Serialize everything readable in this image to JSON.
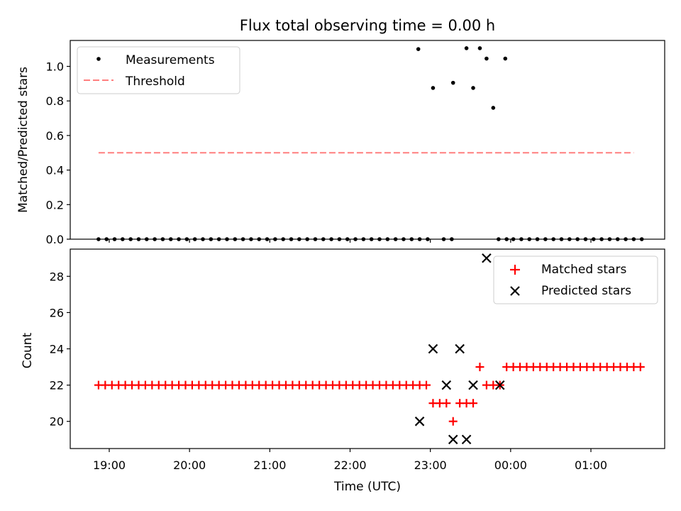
{
  "chart_data": [
    {
      "type": "scatter",
      "title": "Flux total observing time = 0.00 h",
      "xlabel": "",
      "ylabel": "Matched/Predicted stars",
      "ylim": [
        0,
        1.15
      ],
      "yticks": [
        "0.0",
        "0.2",
        "0.4",
        "0.6",
        "0.8",
        "1.0"
      ],
      "legend": {
        "position": "top-left",
        "entries": [
          "Measurements",
          "Threshold"
        ]
      },
      "series": [
        {
          "name": "Measurements",
          "color": "#000000",
          "marker": "dot",
          "points": [
            [
              "18:52",
              0
            ],
            [
              "18:58",
              0
            ],
            [
              "19:04",
              0
            ],
            [
              "19:10",
              0
            ],
            [
              "19:16",
              0
            ],
            [
              "19:22",
              0
            ],
            [
              "19:28",
              0
            ],
            [
              "19:34",
              0
            ],
            [
              "19:40",
              0
            ],
            [
              "19:46",
              0
            ],
            [
              "19:52",
              0
            ],
            [
              "19:58",
              0
            ],
            [
              "20:04",
              0
            ],
            [
              "20:10",
              0
            ],
            [
              "20:16",
              0
            ],
            [
              "20:22",
              0
            ],
            [
              "20:28",
              0
            ],
            [
              "20:34",
              0
            ],
            [
              "20:40",
              0
            ],
            [
              "20:46",
              0
            ],
            [
              "20:52",
              0
            ],
            [
              "20:58",
              0
            ],
            [
              "21:04",
              0
            ],
            [
              "21:10",
              0
            ],
            [
              "21:16",
              0
            ],
            [
              "21:22",
              0
            ],
            [
              "21:28",
              0
            ],
            [
              "21:34",
              0
            ],
            [
              "21:40",
              0
            ],
            [
              "21:46",
              0
            ],
            [
              "21:52",
              0
            ],
            [
              "21:58",
              0
            ],
            [
              "22:04",
              0
            ],
            [
              "22:10",
              0
            ],
            [
              "22:16",
              0
            ],
            [
              "22:22",
              0
            ],
            [
              "22:28",
              0
            ],
            [
              "22:34",
              0
            ],
            [
              "22:40",
              0
            ],
            [
              "22:46",
              0
            ],
            [
              "22:52",
              0
            ],
            [
              "22:58",
              0
            ],
            [
              "23:10",
              0
            ],
            [
              "23:16",
              0
            ],
            [
              "22:51",
              1.1
            ],
            [
              "23:02",
              0.875
            ],
            [
              "23:17",
              0.905
            ],
            [
              "23:27",
              1.105
            ],
            [
              "23:32",
              0.875
            ],
            [
              "23:37",
              1.105
            ],
            [
              "23:42",
              1.045
            ],
            [
              "23:47",
              0.76
            ],
            [
              "23:56",
              1.045
            ],
            [
              "23:51",
              0
            ],
            [
              "23:57",
              0
            ],
            [
              "24:02",
              0
            ],
            [
              "24:08",
              0
            ],
            [
              "24:14",
              0
            ],
            [
              "24:20",
              0
            ],
            [
              "24:26",
              0
            ],
            [
              "24:32",
              0
            ],
            [
              "24:38",
              0
            ],
            [
              "24:44",
              0
            ],
            [
              "24:50",
              0
            ],
            [
              "24:56",
              0
            ],
            [
              "25:02",
              0
            ],
            [
              "25:08",
              0
            ],
            [
              "25:14",
              0
            ],
            [
              "25:20",
              0
            ],
            [
              "25:26",
              0
            ],
            [
              "25:32",
              0
            ],
            [
              "25:38",
              0
            ]
          ]
        },
        {
          "name": "Threshold",
          "color": "#ff7f7f",
          "style": "dashed",
          "points": [
            [
              "18:52",
              0.5
            ],
            [
              "25:32",
              0.5
            ]
          ]
        }
      ]
    },
    {
      "type": "scatter",
      "title": "",
      "xlabel": "Time (UTC)",
      "ylabel": "Count",
      "ylim": [
        18.5,
        29.5
      ],
      "yticks": [
        "20",
        "22",
        "24",
        "26",
        "28"
      ],
      "xticks": [
        "19:00",
        "20:00",
        "21:00",
        "22:00",
        "23:00",
        "00:00",
        "01:00"
      ],
      "legend": {
        "position": "top-right",
        "entries": [
          "Matched stars",
          "Predicted stars"
        ]
      },
      "series": [
        {
          "name": "Matched stars",
          "color": "#ff0000",
          "marker": "plus",
          "points": [
            [
              "18:52",
              22
            ],
            [
              "18:57",
              22
            ],
            [
              "19:02",
              22
            ],
            [
              "19:07",
              22
            ],
            [
              "19:12",
              22
            ],
            [
              "19:17",
              22
            ],
            [
              "19:22",
              22
            ],
            [
              "19:27",
              22
            ],
            [
              "19:32",
              22
            ],
            [
              "19:37",
              22
            ],
            [
              "19:42",
              22
            ],
            [
              "19:47",
              22
            ],
            [
              "19:52",
              22
            ],
            [
              "19:57",
              22
            ],
            [
              "20:02",
              22
            ],
            [
              "20:07",
              22
            ],
            [
              "20:12",
              22
            ],
            [
              "20:17",
              22
            ],
            [
              "20:22",
              22
            ],
            [
              "20:27",
              22
            ],
            [
              "20:32",
              22
            ],
            [
              "20:37",
              22
            ],
            [
              "20:42",
              22
            ],
            [
              "20:47",
              22
            ],
            [
              "20:52",
              22
            ],
            [
              "20:57",
              22
            ],
            [
              "21:02",
              22
            ],
            [
              "21:07",
              22
            ],
            [
              "21:12",
              22
            ],
            [
              "21:17",
              22
            ],
            [
              "21:22",
              22
            ],
            [
              "21:27",
              22
            ],
            [
              "21:32",
              22
            ],
            [
              "21:37",
              22
            ],
            [
              "21:42",
              22
            ],
            [
              "21:47",
              22
            ],
            [
              "21:52",
              22
            ],
            [
              "21:57",
              22
            ],
            [
              "22:02",
              22
            ],
            [
              "22:07",
              22
            ],
            [
              "22:12",
              22
            ],
            [
              "22:17",
              22
            ],
            [
              "22:22",
              22
            ],
            [
              "22:27",
              22
            ],
            [
              "22:32",
              22
            ],
            [
              "22:37",
              22
            ],
            [
              "22:42",
              22
            ],
            [
              "22:47",
              22
            ],
            [
              "22:52",
              22
            ],
            [
              "22:57",
              22
            ],
            [
              "23:02",
              21
            ],
            [
              "23:07",
              21
            ],
            [
              "23:12",
              21
            ],
            [
              "23:17",
              20
            ],
            [
              "23:22",
              21
            ],
            [
              "23:27",
              21
            ],
            [
              "23:32",
              21
            ],
            [
              "23:37",
              23
            ],
            [
              "23:42",
              22
            ],
            [
              "23:47",
              22
            ],
            [
              "23:52",
              22
            ],
            [
              "23:57",
              23
            ],
            [
              "24:02",
              23
            ],
            [
              "24:07",
              23
            ],
            [
              "24:12",
              23
            ],
            [
              "24:17",
              23
            ],
            [
              "24:22",
              23
            ],
            [
              "24:27",
              23
            ],
            [
              "24:32",
              23
            ],
            [
              "24:37",
              23
            ],
            [
              "24:42",
              23
            ],
            [
              "24:47",
              23
            ],
            [
              "24:52",
              23
            ],
            [
              "24:57",
              23
            ],
            [
              "25:02",
              23
            ],
            [
              "25:07",
              23
            ],
            [
              "25:12",
              23
            ],
            [
              "25:17",
              23
            ],
            [
              "25:22",
              23
            ],
            [
              "25:27",
              23
            ],
            [
              "25:32",
              23
            ],
            [
              "25:37",
              23
            ]
          ]
        },
        {
          "name": "Predicted stars",
          "color": "#000000",
          "marker": "x",
          "points": [
            [
              "22:52",
              20
            ],
            [
              "23:02",
              24
            ],
            [
              "23:12",
              22
            ],
            [
              "23:17",
              19
            ],
            [
              "23:22",
              24
            ],
            [
              "23:27",
              19
            ],
            [
              "23:32",
              22
            ],
            [
              "23:42",
              29
            ],
            [
              "23:52",
              22
            ]
          ]
        }
      ]
    }
  ]
}
